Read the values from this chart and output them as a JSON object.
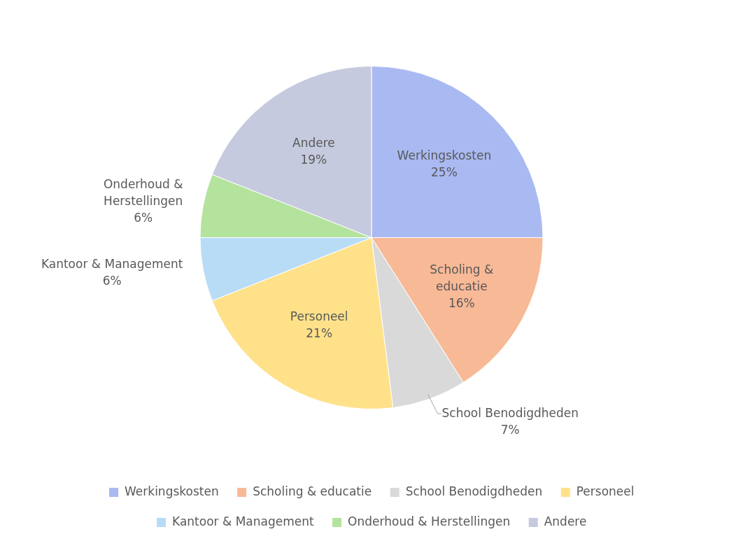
{
  "chart_data": {
    "type": "pie",
    "categories": [
      "Werkingskosten",
      "Scholing & educatie",
      "School Benodigdheden",
      "Personeel",
      "Kantoor & Management",
      "Onderhoud & Herstellingen",
      "Andere"
    ],
    "values": [
      25,
      16,
      7,
      21,
      6,
      6,
      19
    ],
    "value_labels": [
      "25%",
      "16%",
      "7%",
      "21%",
      "6%",
      "6%",
      "19%"
    ],
    "colors": [
      "#a9b9f2",
      "#f8b996",
      "#d9d9d9",
      "#ffe18a",
      "#b8dcf6",
      "#b4e39e",
      "#c6cade"
    ],
    "legend": "bottom"
  }
}
